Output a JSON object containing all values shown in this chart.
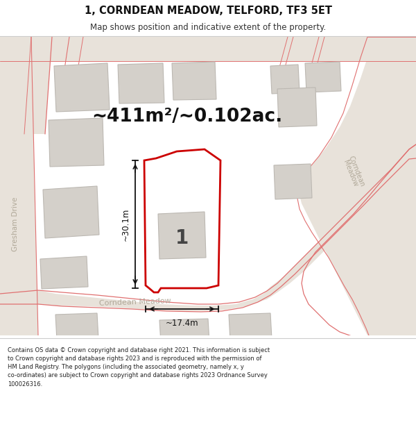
{
  "title": "1, CORNDEAN MEADOW, TELFORD, TF3 5ET",
  "subtitle": "Map shows position and indicative extent of the property.",
  "area_text": "~411m²/~0.102ac.",
  "dim_width": "~17.4m",
  "dim_height": "~30.1m",
  "plot_label": "1",
  "footer_line1": "Contains OS data © Crown copyright and database right 2021. This information is subject",
  "footer_line2": "to Crown copyright and database rights 2023 and is reproduced with the permission of",
  "footer_line3": "HM Land Registry. The polygons (including the associated geometry, namely x, y",
  "footer_line4": "co-ordinates) are subject to Crown copyright and database rights 2023 Ordnance Survey",
  "footer_line5": "100026316.",
  "map_bg": "#f0eeea",
  "road_fill": "#e8e2da",
  "road_line": "#e07070",
  "plot_fill": "#ffffff",
  "plot_stroke": "#cc0000",
  "building_fill": "#d4d0ca",
  "building_stroke": "#bcb8b2",
  "dim_color": "#111111",
  "label_color": "#b0a898",
  "title_color": "#111111",
  "area_color": "#111111"
}
